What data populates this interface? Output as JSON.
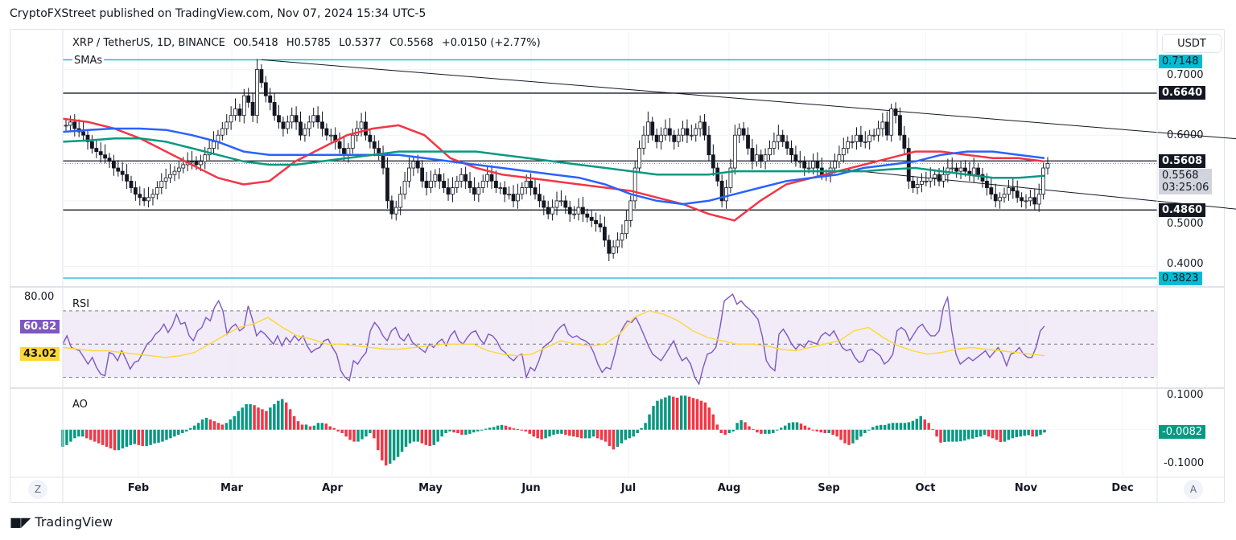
{
  "header": {
    "published": "CryptoFXStreet published on TradingView.com, Nov 07, 2024 15:34 UTC-5"
  },
  "legend": {
    "symbol": "XRP / TetherUS, 1D, BINANCE",
    "open": "O0.5418",
    "high": "H0.5785",
    "low": "L0.5377",
    "close": "C0.5568",
    "change": "+0.0150 (+2.77%)",
    "sma_label": "SMAs"
  },
  "currency_button": "USDT",
  "footer": {
    "brand": "TradingView",
    "z_button": "Z",
    "a_button": "A"
  },
  "colors": {
    "sma_red": "#f23645",
    "sma_blue": "#2962ff",
    "sma_green": "#089981",
    "cyan": "#00bcd4",
    "rsi": "#7e57c2",
    "rsi_ma": "#fdd835",
    "ao_up": "#089981",
    "ao_down": "#f23645",
    "rsi_band": "#ede7f6"
  },
  "chart_data": [
    {
      "type": "candlestick",
      "title": "XRP / TetherUS, 1D, BINANCE",
      "x_tick_labels": [
        "Feb",
        "Mar",
        "Apr",
        "May",
        "Jun",
        "Jul",
        "Aug",
        "Sep",
        "Oct",
        "Nov",
        "Dec"
      ],
      "y_tick_labels": [
        "0.7000",
        "0.6000",
        "0.5000",
        "0.4000"
      ],
      "ylim": [
        0.375,
        0.73
      ],
      "price_labels": [
        {
          "value": "0.7148",
          "style": "cyan"
        },
        {
          "value": "0.6640",
          "style": "black"
        },
        {
          "value": "0.5608",
          "style": "black"
        },
        {
          "value": "0.5568",
          "sub": "03:25:06",
          "style": "current"
        },
        {
          "value": "0.4860",
          "style": "black"
        },
        {
          "value": "0.3823",
          "style": "cyan"
        }
      ],
      "horizontal_levels": [
        {
          "value": 0.7148,
          "color": "cyan"
        },
        {
          "value": 0.664,
          "color": "black"
        },
        {
          "value": 0.5608,
          "color": "black"
        },
        {
          "value": 0.486,
          "color": "black"
        },
        {
          "value": 0.3823,
          "color": "cyan"
        }
      ],
      "trendlines": [
        {
          "from": [
            45,
            0.7148
          ],
          "to": [
            306,
            0.575
          ]
        },
        {
          "from": [
            180,
            0.547
          ],
          "to": [
            300,
            0.467
          ]
        }
      ],
      "close_series": [
        0.615,
        0.62,
        0.61,
        0.605,
        0.6,
        0.59,
        0.58,
        0.575,
        0.57,
        0.565,
        0.56,
        0.55,
        0.545,
        0.54,
        0.53,
        0.52,
        0.51,
        0.505,
        0.5,
        0.505,
        0.51,
        0.52,
        0.53,
        0.535,
        0.54,
        0.545,
        0.55,
        0.555,
        0.56,
        0.56,
        0.555,
        0.56,
        0.57,
        0.58,
        0.59,
        0.6,
        0.61,
        0.62,
        0.63,
        0.64,
        0.63,
        0.66,
        0.65,
        0.63,
        0.7,
        0.68,
        0.66,
        0.65,
        0.63,
        0.62,
        0.61,
        0.62,
        0.63,
        0.62,
        0.6,
        0.61,
        0.62,
        0.63,
        0.62,
        0.61,
        0.6,
        0.6,
        0.59,
        0.58,
        0.57,
        0.58,
        0.6,
        0.61,
        0.62,
        0.6,
        0.59,
        0.58,
        0.57,
        0.55,
        0.5,
        0.48,
        0.49,
        0.51,
        0.53,
        0.55,
        0.56,
        0.55,
        0.53,
        0.52,
        0.53,
        0.54,
        0.53,
        0.52,
        0.51,
        0.52,
        0.53,
        0.54,
        0.53,
        0.52,
        0.51,
        0.52,
        0.53,
        0.54,
        0.53,
        0.52,
        0.52,
        0.51,
        0.51,
        0.5,
        0.51,
        0.52,
        0.53,
        0.52,
        0.51,
        0.5,
        0.49,
        0.48,
        0.49,
        0.5,
        0.5,
        0.49,
        0.48,
        0.48,
        0.49,
        0.48,
        0.475,
        0.47,
        0.465,
        0.46,
        0.44,
        0.42,
        0.43,
        0.44,
        0.45,
        0.47,
        0.5,
        0.55,
        0.58,
        0.6,
        0.62,
        0.6,
        0.59,
        0.6,
        0.61,
        0.6,
        0.59,
        0.6,
        0.61,
        0.6,
        0.6,
        0.61,
        0.62,
        0.6,
        0.57,
        0.55,
        0.53,
        0.5,
        0.52,
        0.55,
        0.6,
        0.61,
        0.6,
        0.58,
        0.56,
        0.57,
        0.56,
        0.57,
        0.58,
        0.59,
        0.6,
        0.59,
        0.58,
        0.57,
        0.56,
        0.56,
        0.55,
        0.55,
        0.56,
        0.55,
        0.54,
        0.54,
        0.55,
        0.56,
        0.57,
        0.58,
        0.59,
        0.59,
        0.6,
        0.59,
        0.59,
        0.6,
        0.6,
        0.61,
        0.62,
        0.6,
        0.64,
        0.63,
        0.6,
        0.58,
        0.53,
        0.52,
        0.525,
        0.53,
        0.53,
        0.535,
        0.54,
        0.53,
        0.54,
        0.55,
        0.55,
        0.545,
        0.55,
        0.545,
        0.54,
        0.55,
        0.54,
        0.53,
        0.52,
        0.51,
        0.5,
        0.505,
        0.51,
        0.52,
        0.515,
        0.505,
        0.5,
        0.5,
        0.505,
        0.495,
        0.51,
        0.55,
        0.5568
      ],
      "sma_series": [
        {
          "name": "SMA red",
          "color": "sma_red",
          "values": [
            0.625,
            0.62,
            0.61,
            0.595,
            0.575,
            0.555,
            0.535,
            0.525,
            0.53,
            0.56,
            0.58,
            0.6,
            0.61,
            0.615,
            0.6,
            0.565,
            0.55,
            0.54,
            0.535,
            0.53,
            0.525,
            0.52,
            0.515,
            0.505,
            0.495,
            0.48,
            0.47,
            0.5,
            0.525,
            0.535,
            0.545,
            0.555,
            0.565,
            0.575,
            0.575,
            0.57,
            0.565,
            0.565,
            0.56
          ]
        },
        {
          "name": "SMA blue",
          "color": "sma_blue",
          "values": [
            0.605,
            0.608,
            0.61,
            0.61,
            0.608,
            0.6,
            0.59,
            0.575,
            0.57,
            0.57,
            0.57,
            0.57,
            0.57,
            0.57,
            0.565,
            0.56,
            0.555,
            0.55,
            0.545,
            0.54,
            0.535,
            0.525,
            0.51,
            0.5,
            0.495,
            0.5,
            0.51,
            0.52,
            0.53,
            0.535,
            0.54,
            0.55,
            0.555,
            0.56,
            0.57,
            0.575,
            0.575,
            0.57,
            0.565
          ]
        },
        {
          "name": "SMA green",
          "color": "sma_green",
          "values": [
            0.59,
            0.592,
            0.595,
            0.595,
            0.59,
            0.58,
            0.57,
            0.56,
            0.555,
            0.555,
            0.56,
            0.565,
            0.57,
            0.575,
            0.575,
            0.575,
            0.575,
            0.57,
            0.565,
            0.56,
            0.555,
            0.55,
            0.545,
            0.54,
            0.54,
            0.54,
            0.545,
            0.545,
            0.545,
            0.545,
            0.545,
            0.545,
            0.548,
            0.55,
            0.545,
            0.54,
            0.535,
            0.535,
            0.538
          ]
        }
      ]
    },
    {
      "type": "line",
      "title": "RSI",
      "y_tick_labels": [
        "80.00"
      ],
      "ylim": [
        25,
        82
      ],
      "bands": [
        70,
        50,
        30
      ],
      "value_labels": [
        {
          "value": "60.82",
          "series": "RSI"
        },
        {
          "value": "43.02",
          "series": "RSI MA"
        }
      ],
      "series": [
        {
          "name": "RSI",
          "color": "rsi",
          "values": [
            50,
            55,
            48,
            47,
            46,
            42,
            38,
            42,
            36,
            32,
            31,
            45,
            44,
            40,
            46,
            41,
            35,
            39,
            40,
            45,
            50,
            52,
            56,
            58,
            62,
            57,
            61,
            68,
            62,
            63,
            55,
            52,
            58,
            60,
            66,
            64,
            72,
            76,
            70,
            56,
            60,
            62,
            58,
            60,
            73,
            65,
            55,
            58,
            56,
            53,
            50,
            55,
            49,
            54,
            51,
            55,
            52,
            55,
            49,
            45,
            47,
            48,
            52,
            53,
            48,
            44,
            34,
            30,
            28,
            40,
            38,
            42,
            45,
            58,
            63,
            60,
            55,
            52,
            58,
            60,
            54,
            52,
            56,
            51,
            49,
            47,
            45,
            50,
            48,
            51,
            53,
            49,
            55,
            58,
            52,
            50,
            54,
            57,
            58,
            53,
            50,
            56,
            55,
            52,
            47,
            45,
            42,
            40,
            43,
            44,
            30,
            36,
            34,
            40,
            48,
            50,
            52,
            57,
            60,
            62,
            56,
            54,
            55,
            53,
            52,
            50,
            45,
            38,
            33,
            36,
            35,
            44,
            55,
            60,
            64,
            63,
            66,
            61,
            55,
            49,
            44,
            42,
            40,
            44,
            48,
            52,
            45,
            40,
            42,
            38,
            30,
            26,
            36,
            44,
            45,
            48,
            60,
            76,
            78,
            80,
            74,
            76,
            73,
            71,
            68,
            65,
            55,
            40,
            36,
            34,
            56,
            59,
            55,
            50,
            47,
            50,
            48,
            52,
            51,
            50,
            55,
            57,
            55,
            58,
            53,
            48,
            46,
            47,
            42,
            39,
            40,
            46,
            47,
            45,
            43,
            38,
            40,
            44,
            58,
            60,
            58,
            52,
            56,
            60,
            62,
            58,
            55,
            55,
            58,
            72,
            78,
            58,
            44,
            38,
            40,
            42,
            40,
            42,
            44,
            46,
            42,
            45,
            48,
            44,
            37,
            44,
            45,
            48,
            44,
            42,
            42,
            48,
            58,
            60.82
          ]
        },
        {
          "name": "RSI MA",
          "color": "rsi_ma",
          "values": [
            48,
            47,
            46,
            46,
            45,
            44,
            43,
            42,
            43,
            45,
            50,
            55,
            60,
            62,
            66,
            60,
            55,
            53,
            50,
            50,
            49,
            48,
            47,
            47,
            48,
            49,
            50,
            50,
            50,
            46,
            44,
            43,
            44,
            48,
            52,
            50,
            49,
            50,
            56,
            66,
            70,
            68,
            64,
            58,
            54,
            52,
            50,
            50,
            49,
            47,
            46,
            48,
            50,
            52,
            58,
            60,
            54,
            49,
            46,
            44,
            45,
            47,
            48,
            47,
            46,
            45,
            44,
            43.02
          ]
        }
      ]
    },
    {
      "type": "bar",
      "title": "AO",
      "y_tick_labels": [
        "0.1000",
        "-0.1000"
      ],
      "ylim": [
        -0.135,
        0.115
      ],
      "value_label": "-0.0082",
      "values": [
        -0.05,
        -0.045,
        -0.035,
        -0.025,
        -0.02,
        -0.02,
        -0.025,
        -0.03,
        -0.035,
        -0.04,
        -0.045,
        -0.05,
        -0.055,
        -0.06,
        -0.06,
        -0.055,
        -0.05,
        -0.045,
        -0.042,
        -0.045,
        -0.048,
        -0.048,
        -0.045,
        -0.04,
        -0.038,
        -0.035,
        -0.03,
        -0.025,
        -0.02,
        -0.015,
        -0.01,
        -0.005,
        0.005,
        0.012,
        0.02,
        0.03,
        0.035,
        0.03,
        0.025,
        0.02,
        0.015,
        0.02,
        0.03,
        0.04,
        0.055,
        0.065,
        0.075,
        0.075,
        0.072,
        0.065,
        0.06,
        0.055,
        0.065,
        0.075,
        0.085,
        0.09,
        0.08,
        0.06,
        0.04,
        0.025,
        0.015,
        0.015,
        0.01,
        0.012,
        0.02,
        0.02,
        0.018,
        0.01,
        0.005,
        -0.005,
        -0.01,
        -0.02,
        -0.03,
        -0.035,
        -0.035,
        -0.028,
        -0.02,
        -0.01,
        -0.025,
        -0.06,
        -0.09,
        -0.105,
        -0.1,
        -0.09,
        -0.08,
        -0.065,
        -0.05,
        -0.04,
        -0.035,
        -0.035,
        -0.04,
        -0.045,
        -0.048,
        -0.045,
        -0.035,
        -0.02,
        -0.01,
        -0.005,
        -0.008,
        -0.01,
        -0.015,
        -0.015,
        -0.012,
        -0.008,
        -0.005,
        -0.002,
        0.003,
        0.006,
        0.008,
        0.012,
        0.014,
        0.012,
        0.008,
        0.004,
        0.002,
        0.0,
        -0.005,
        -0.012,
        -0.02,
        -0.025,
        -0.028,
        -0.025,
        -0.02,
        -0.015,
        -0.012,
        -0.012,
        -0.015,
        -0.018,
        -0.02,
        -0.022,
        -0.025,
        -0.025,
        -0.025,
        -0.02,
        -0.025,
        -0.03,
        -0.035,
        -0.048,
        -0.058,
        -0.05,
        -0.04,
        -0.03,
        -0.025,
        -0.02,
        -0.01,
        0.005,
        0.02,
        0.045,
        0.07,
        0.085,
        0.09,
        0.095,
        0.1,
        0.097,
        0.094,
        0.1,
        0.1,
        0.097,
        0.093,
        0.09,
        0.085,
        0.08,
        0.065,
        0.045,
        0.015,
        -0.01,
        -0.015,
        -0.01,
        -0.005,
        0.02,
        0.028,
        0.022,
        0.01,
        0.002,
        -0.008,
        -0.012,
        -0.012,
        -0.012,
        -0.01,
        -0.002,
        0.006,
        0.012,
        0.02,
        0.022,
        0.022,
        0.018,
        0.012,
        0.006,
        0.0,
        -0.005,
        -0.008,
        -0.01,
        -0.01,
        -0.015,
        -0.02,
        -0.03,
        -0.04,
        -0.045,
        -0.04,
        -0.03,
        -0.02,
        -0.01,
        0.0,
        0.008,
        0.012,
        0.014,
        0.014,
        0.018,
        0.02,
        0.02,
        0.02,
        0.02,
        0.022,
        0.026,
        0.032,
        0.04,
        0.03,
        0.02,
        0.002,
        -0.02,
        -0.038,
        -0.036,
        -0.035,
        -0.035,
        -0.035,
        -0.034,
        -0.032,
        -0.028,
        -0.026,
        -0.022,
        -0.02,
        -0.015,
        -0.02,
        -0.025,
        -0.03,
        -0.036,
        -0.035,
        -0.03,
        -0.025,
        -0.022,
        -0.02,
        -0.018,
        -0.016,
        -0.02,
        -0.02,
        -0.015,
        -0.0082
      ]
    }
  ]
}
